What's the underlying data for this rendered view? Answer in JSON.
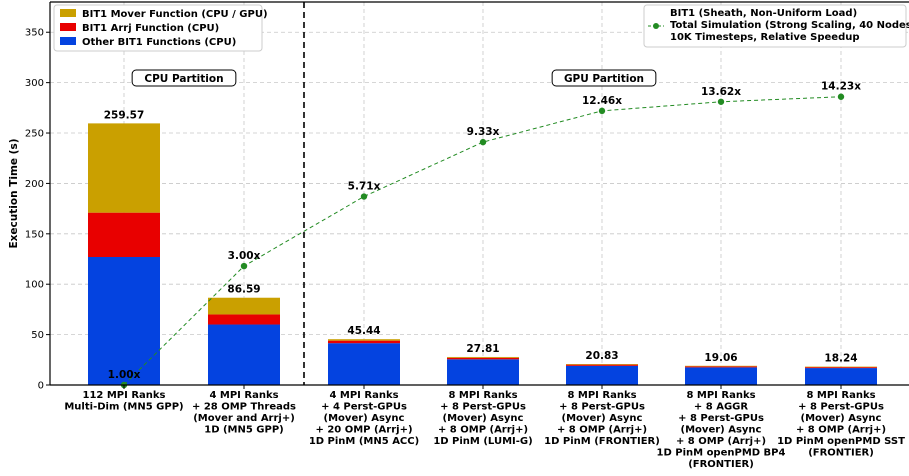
{
  "chart_data": {
    "type": "bar",
    "stacked": true,
    "ylabel": "Execution Time (s)",
    "ylim": [
      0,
      380
    ],
    "yticks": [
      0,
      50,
      100,
      150,
      200,
      250,
      300,
      350
    ],
    "grid": true,
    "categories": [
      [
        "112 MPI Ranks",
        "Multi-Dim (MN5 GPP)"
      ],
      [
        "4 MPI Ranks",
        "+ 28 OMP Threads",
        "(Mover and Arrj+)",
        "1D (MN5 GPP)"
      ],
      [
        "4 MPI Ranks",
        "+ 4 Perst-GPUs",
        "(Mover) Async",
        "+ 20 OMP (Arrj+)",
        "1D PinM (MN5 ACC)"
      ],
      [
        "8 MPI Ranks",
        "+ 8 Perst-GPUs",
        "(Mover) Async",
        "+ 8 OMP (Arrj+)",
        "1D PinM (LUMI-G)"
      ],
      [
        "8 MPI Ranks",
        "+ 8 Perst-GPUs",
        "(Mover) Async",
        "+ 8 OMP (Arrj+)",
        "1D PinM (FRONTIER)"
      ],
      [
        "8 MPI Ranks",
        "+ 8 AGGR",
        "+ 8 Perst-GPUs",
        "(Mover) Async",
        "+ 8 OMP (Arrj+)",
        "1D PinM openPMD BP4",
        "(FRONTIER)"
      ],
      [
        "8 MPI Ranks",
        "+ 8 Perst-GPUs",
        "(Mover) Async",
        "+ 8 OMP (Arrj+)",
        "1D PinM openPMD SST",
        "(FRONTIER)"
      ]
    ],
    "series": [
      {
        "name": "Other BIT1 Functions (CPU)",
        "color": "#0443e0",
        "values": [
          127,
          60,
          41.5,
          25.5,
          19.0,
          17.5,
          16.8
        ]
      },
      {
        "name": "BIT1 Arrj Function (CPU)",
        "color": "#e80000",
        "values": [
          44,
          10,
          2.5,
          1.5,
          1.2,
          1.0,
          0.9
        ]
      },
      {
        "name": "BIT1 Mover Function (CPU / GPU)",
        "color": "#caa000",
        "values": [
          88.57,
          16.59,
          1.44,
          0.81,
          0.63,
          0.56,
          0.54
        ]
      }
    ],
    "totals": [
      "259.57",
      "86.59",
      "45.44",
      "27.81",
      "20.83",
      "19.06",
      "18.24"
    ],
    "line_series": {
      "name": "BIT1 (Sheath, Non-Uniform Load)\nTotal Simulation (Strong Scaling, 40 Nodes)\n10K Timesteps, Relative Speedup",
      "color": "#228b22",
      "values": [
        1.0,
        3.0,
        5.71,
        9.33,
        12.46,
        13.62,
        14.23
      ],
      "labels": [
        "1.00x",
        "3.00x",
        "5.71x",
        "9.33x",
        "12.46x",
        "13.62x",
        "14.23x"
      ],
      "plotted_time_equivalent": [
        0,
        118,
        187,
        241,
        272,
        281,
        286
      ]
    },
    "legend_left": [
      {
        "label": "BIT1 Mover Function (CPU / GPU)",
        "color": "#caa000"
      },
      {
        "label": "BIT1 Arrj Function (CPU)",
        "color": "#e80000"
      },
      {
        "label": "Other BIT1 Functions (CPU)",
        "color": "#0443e0"
      }
    ],
    "legend_right": {
      "lines": [
        "BIT1 (Sheath, Non-Uniform Load)",
        "Total Simulation (Strong Scaling, 40 Nodes)",
        "10K Timesteps, Relative Speedup"
      ]
    },
    "partitions": {
      "cpu_label": "CPU Partition",
      "gpu_label": "GPU Partition"
    }
  }
}
